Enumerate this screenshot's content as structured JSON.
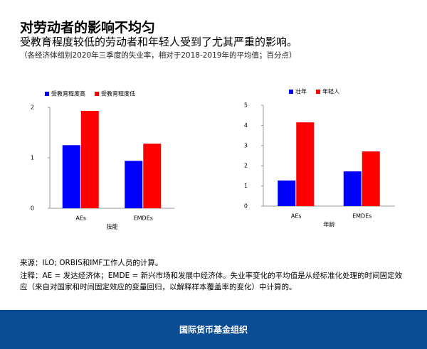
{
  "header": {
    "title": "对劳动者的影响不均匀",
    "subtitle": "受教育程度较低的劳动者和年轻人受到了尤其严重的影响。",
    "note": "（各经济体组别2020年三季度的失业率，相对于2018-2019年的平均值；百分点）"
  },
  "chart_data": [
    {
      "type": "bar",
      "xlabel": "技能",
      "categories": [
        "AEs",
        "EMDEs"
      ],
      "series": [
        {
          "name": "受教育程度高",
          "color": "#0000ff",
          "values": [
            1.25,
            0.94
          ]
        },
        {
          "name": "受教育程度低",
          "color": "#ff0000",
          "values": [
            1.93,
            1.28
          ]
        }
      ],
      "ylim": [
        0,
        2
      ],
      "yticks": [
        0,
        1,
        2
      ]
    },
    {
      "type": "bar",
      "xlabel": "年龄",
      "categories": [
        "AEs",
        "EMDEs"
      ],
      "series": [
        {
          "name": "壮年",
          "color": "#0000ff",
          "values": [
            1.27,
            1.72
          ]
        },
        {
          "name": "年轻人",
          "color": "#ff0000",
          "values": [
            4.15,
            2.71
          ]
        }
      ],
      "ylim": [
        0,
        5
      ],
      "yticks": [
        0,
        1,
        2,
        3,
        4,
        5
      ]
    }
  ],
  "footer": {
    "source": "来源：ILO; ORBIS和IMF工作人员的计算。",
    "note": "注释：AE = 发达经济体；EMDE = 新兴市场和发展中经济体。失业率变化的平均值是从经标准化处理的时间固定效应（来自对国家和时间固定效应的变量回归，以解释样本覆盖率的变化）中计算的。",
    "org": "国际货币基金组织"
  }
}
